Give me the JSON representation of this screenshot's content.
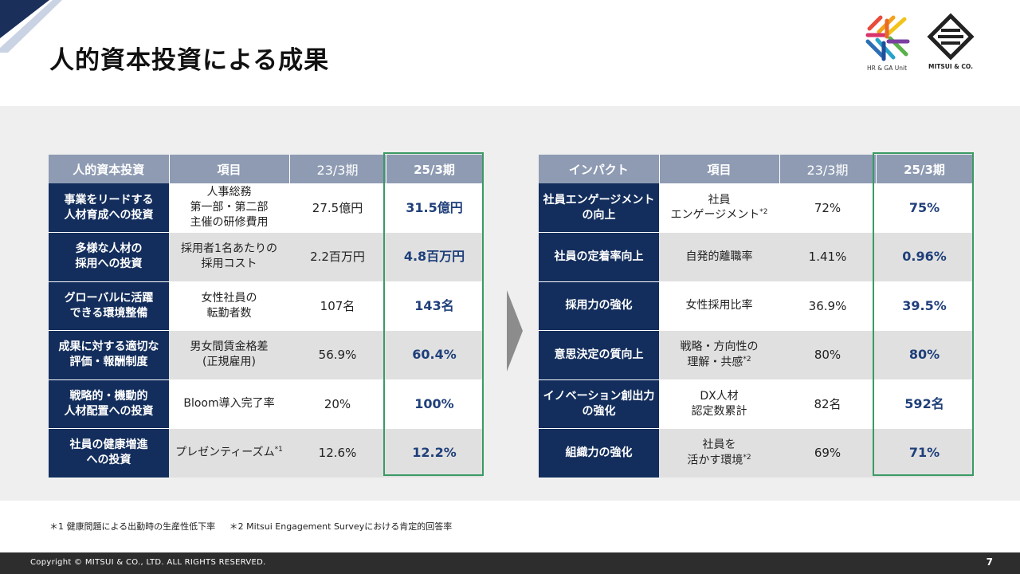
{
  "header": {
    "title": "人的資本投資による成果",
    "logos": [
      {
        "caption": "HR & GA Unit"
      },
      {
        "caption": "MITSUI & CO."
      }
    ]
  },
  "left_table": {
    "headers": [
      "人的資本投資",
      "項目",
      "23/3期",
      "25/3期"
    ],
    "rows": [
      {
        "category": "事業をリードする\n人材育成への投資",
        "item": "人事総務\n第一部・第二部\n主催の研修費用",
        "prev": "27.5億円",
        "curr": "31.5億円"
      },
      {
        "category": "多様な人材の\n採用への投資",
        "item": "採用者1名あたりの\n採用コスト",
        "prev": "2.2百万円",
        "curr": "4.8百万円"
      },
      {
        "category": "グローバルに活躍\nできる環境整備",
        "item": "女性社員の\n転勤者数",
        "prev": "107名",
        "curr": "143名"
      },
      {
        "category": "成果に対する適切な\n評価・報酬制度",
        "item": "男女間賃金格差\n(正規雇用)",
        "prev": "56.9%",
        "curr": "60.4%"
      },
      {
        "category": "戦略的・機動的\n人材配置への投資",
        "item": "Bloom導入完了率",
        "prev": "20%",
        "curr": "100%"
      },
      {
        "category": "社員の健康増進\nへの投資",
        "item": "プレゼンティーズム",
        "item_note": "*1",
        "prev": "12.6%",
        "curr": "12.2%"
      }
    ]
  },
  "right_table": {
    "headers": [
      "インパクト",
      "項目",
      "23/3期",
      "25/3期"
    ],
    "rows": [
      {
        "category": "社員エンゲージメント\nの向上",
        "item": "社員\nエンゲージメント",
        "item_note": "*2",
        "prev": "72%",
        "curr": "75%"
      },
      {
        "category": "社員の定着率向上",
        "item": "自発的離職率",
        "prev": "1.41%",
        "curr": "0.96%"
      },
      {
        "category": "採用力の強化",
        "item": "女性採用比率",
        "prev": "36.9%",
        "curr": "39.5%"
      },
      {
        "category": "意思決定の質向上",
        "item": "戦略・方向性の\n理解・共感",
        "item_note": "*2",
        "prev": "80%",
        "curr": "80%"
      },
      {
        "category": "イノベーション創出力\nの強化",
        "item": "DX人材\n認定数累計",
        "prev": "82名",
        "curr": "592名"
      },
      {
        "category": "組織力の強化",
        "item": "社員を\n活かす環境",
        "item_note": "*2",
        "prev": "69%",
        "curr": "71%"
      }
    ]
  },
  "footnotes": [
    "＊1 健康問題による出勤時の生産性低下率",
    "＊2 Mitsui Engagement Surveyにおける肯定的回答率"
  ],
  "footer": {
    "copyright": "Copyright © MITSUI & CO., LTD. ALL RIGHTS RESERVED.",
    "page_number": "7"
  },
  "colors": {
    "header_row": "#8e9bb3",
    "category_cell": "#132e5c",
    "highlight_text": "#1f3f7a",
    "highlight_frame": "#3a9a64",
    "band": "#efefef",
    "footer": "#2d2d2d"
  }
}
